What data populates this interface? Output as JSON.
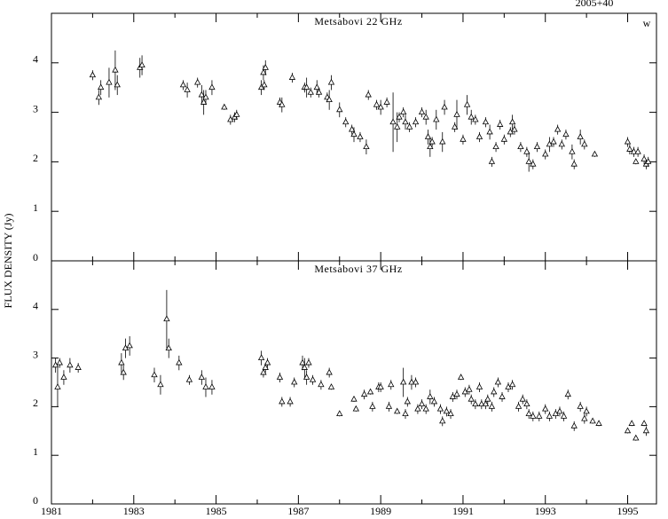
{
  "chart_data": [
    {
      "type": "scatter",
      "title": "Metsabovi 22 GHz",
      "source": "2005+40",
      "corner_label": "w",
      "ylabel": "FLUX DENSITY (Jy)",
      "x": [
        1982.0,
        1982.15,
        1982.2,
        1982.4,
        1982.55,
        1982.6,
        1983.15,
        1983.2,
        1984.2,
        1984.3,
        1984.55,
        1984.65,
        1984.7,
        1984.75,
        1984.9,
        1985.2,
        1985.35,
        1985.45,
        1985.5,
        1986.1,
        1986.15,
        1986.2,
        1986.17,
        1986.55,
        1986.6,
        1986.85,
        1987.15,
        1987.2,
        1987.3,
        1987.45,
        1987.5,
        1987.7,
        1987.75,
        1987.8,
        1988.0,
        1988.15,
        1988.3,
        1988.35,
        1988.5,
        1988.65,
        1988.7,
        1988.9,
        1989.0,
        1989.15,
        1989.3,
        1989.4,
        1989.45,
        1989.55,
        1989.6,
        1989.7,
        1989.85,
        1990.0,
        1990.1,
        1990.15,
        1990.2,
        1990.25,
        1990.35,
        1990.5,
        1990.55,
        1990.8,
        1990.85,
        1991.0,
        1991.1,
        1991.2,
        1991.3,
        1991.4,
        1991.55,
        1991.65,
        1991.7,
        1991.8,
        1991.9,
        1992.0,
        1992.15,
        1992.2,
        1992.25,
        1992.4,
        1992.55,
        1992.6,
        1992.7,
        1992.8,
        1993.0,
        1993.1,
        1993.2,
        1993.3,
        1993.4,
        1993.5,
        1993.65,
        1993.7,
        1993.85,
        1993.95,
        1994.2,
        1995.0,
        1995.05,
        1995.15,
        1995.2,
        1995.25,
        1995.4,
        1995.45,
        1995.5
      ],
      "values": [
        3.75,
        3.3,
        3.5,
        3.6,
        3.85,
        3.55,
        3.9,
        3.95,
        3.55,
        3.45,
        3.6,
        3.35,
        3.2,
        3.3,
        3.5,
        3.1,
        2.85,
        2.9,
        2.95,
        3.5,
        3.8,
        3.9,
        3.55,
        3.2,
        3.15,
        3.7,
        3.5,
        3.5,
        3.4,
        3.5,
        3.4,
        3.3,
        3.25,
        3.6,
        3.05,
        2.8,
        2.65,
        2.55,
        2.5,
        2.3,
        3.35,
        3.15,
        3.1,
        3.2,
        2.8,
        2.7,
        2.9,
        3.0,
        2.8,
        2.7,
        2.8,
        3.0,
        2.9,
        2.5,
        2.3,
        2.4,
        2.85,
        2.4,
        3.1,
        2.7,
        2.95,
        2.45,
        3.15,
        2.9,
        2.85,
        2.5,
        2.8,
        2.6,
        2.0,
        2.3,
        2.75,
        2.45,
        2.6,
        2.8,
        2.65,
        2.3,
        2.2,
        2.0,
        1.95,
        2.3,
        2.15,
        2.35,
        2.4,
        2.65,
        2.35,
        2.55,
        2.2,
        1.95,
        2.5,
        2.35,
        2.15,
        2.4,
        2.25,
        2.2,
        2.0,
        2.2,
        2.05,
        1.95,
        2.0
      ],
      "errors": [
        0.1,
        0.15,
        0.15,
        0.3,
        0.4,
        0.2,
        0.2,
        0.2,
        0.1,
        0.15,
        0.1,
        0.2,
        0.25,
        0.15,
        0.15,
        0.05,
        0.1,
        0.1,
        0.1,
        0.15,
        0.15,
        0.15,
        0.1,
        0.1,
        0.15,
        0.1,
        0.1,
        0.2,
        0.1,
        0.15,
        0.1,
        0.1,
        0.2,
        0.15,
        0.15,
        0.1,
        0.1,
        0.15,
        0.1,
        0.15,
        0.1,
        0.1,
        0.15,
        0.1,
        0.6,
        0.3,
        0.1,
        0.1,
        0.15,
        0.1,
        0.1,
        0.1,
        0.15,
        0.15,
        0.2,
        0.1,
        0.2,
        0.2,
        0.15,
        0.1,
        0.3,
        0.1,
        0.2,
        0.15,
        0.1,
        0.1,
        0.1,
        0.15,
        0.1,
        0.1,
        0.1,
        0.1,
        0.1,
        0.15,
        0.1,
        0.1,
        0.1,
        0.2,
        0.1,
        0.1,
        0.1,
        0.15,
        0.1,
        0.1,
        0.1,
        0.1,
        0.15,
        0.1,
        0.15,
        0.1,
        0.05,
        0.1,
        0.1,
        0.1,
        0.05,
        0.1,
        0.1,
        0.1,
        0.1
      ],
      "xlim": [
        1981,
        1995.7
      ],
      "ylim": [
        0,
        5
      ],
      "yticks": [
        0,
        1,
        2,
        3,
        4
      ],
      "xticks": [
        1981,
        1983,
        1985,
        1987,
        1989,
        1991,
        1993,
        1995
      ],
      "xminor": [
        1982,
        1984,
        1986,
        1988,
        1990,
        1992,
        1994
      ]
    },
    {
      "type": "scatter",
      "title": "Metsabovi 37 GHz",
      "x": [
        1981.1,
        1981.15,
        1981.2,
        1981.3,
        1981.45,
        1981.65,
        1982.7,
        1982.75,
        1982.8,
        1982.9,
        1983.5,
        1983.65,
        1983.8,
        1983.85,
        1984.1,
        1984.35,
        1984.65,
        1984.75,
        1984.9,
        1986.1,
        1986.15,
        1986.2,
        1986.25,
        1986.55,
        1986.6,
        1986.8,
        1986.9,
        1987.1,
        1987.15,
        1987.2,
        1987.25,
        1987.35,
        1987.55,
        1987.75,
        1987.8,
        1988.0,
        1988.35,
        1988.4,
        1988.6,
        1988.75,
        1988.8,
        1988.95,
        1989.0,
        1989.2,
        1989.25,
        1989.4,
        1989.55,
        1989.6,
        1989.65,
        1989.75,
        1989.85,
        1989.9,
        1990.0,
        1990.1,
        1990.2,
        1990.3,
        1990.45,
        1990.5,
        1990.6,
        1990.7,
        1990.75,
        1990.85,
        1990.95,
        1991.05,
        1991.15,
        1991.2,
        1991.3,
        1991.4,
        1991.45,
        1991.55,
        1991.6,
        1991.7,
        1991.75,
        1991.85,
        1991.95,
        1992.1,
        1992.2,
        1992.35,
        1992.45,
        1992.55,
        1992.6,
        1992.7,
        1992.85,
        1993.0,
        1993.1,
        1993.25,
        1993.35,
        1993.45,
        1993.55,
        1993.7,
        1993.85,
        1993.95,
        1994.0,
        1994.15,
        1994.3,
        1995.0,
        1995.1,
        1995.2,
        1995.4,
        1995.45
      ],
      "values": [
        2.85,
        2.4,
        2.9,
        2.6,
        2.85,
        2.8,
        2.9,
        2.7,
        3.2,
        3.25,
        2.65,
        2.45,
        3.8,
        3.2,
        2.9,
        2.55,
        2.6,
        2.4,
        2.4,
        3.0,
        2.7,
        2.8,
        2.9,
        2.6,
        2.1,
        2.1,
        2.5,
        2.9,
        2.8,
        2.6,
        2.9,
        2.55,
        2.45,
        2.7,
        2.4,
        1.85,
        2.15,
        1.95,
        2.25,
        2.3,
        2.0,
        2.4,
        2.4,
        2.0,
        2.45,
        1.9,
        2.5,
        1.85,
        2.1,
        2.5,
        2.5,
        1.95,
        2.05,
        1.95,
        2.2,
        2.1,
        1.95,
        1.7,
        1.9,
        1.85,
        2.2,
        2.25,
        2.6,
        2.3,
        2.35,
        2.15,
        2.05,
        2.4,
        2.05,
        2.05,
        2.15,
        2.0,
        2.3,
        2.5,
        2.2,
        2.4,
        2.45,
        2.0,
        2.15,
        2.05,
        1.85,
        1.8,
        1.8,
        1.95,
        1.8,
        1.85,
        1.9,
        1.8,
        2.25,
        1.6,
        2.0,
        1.75,
        1.9,
        1.7,
        1.65,
        1.5,
        1.65,
        1.35,
        1.65,
        1.5
      ],
      "errors": [
        0.15,
        0.4,
        0.1,
        0.15,
        0.15,
        0.1,
        0.2,
        0.15,
        0.2,
        0.2,
        0.15,
        0.2,
        0.6,
        0.2,
        0.15,
        0.1,
        0.15,
        0.2,
        0.15,
        0.15,
        0.1,
        0.1,
        0.1,
        0.1,
        0.1,
        0.1,
        0.1,
        0.15,
        0.2,
        0.15,
        0.1,
        0.1,
        0.1,
        0.1,
        0.05,
        0.05,
        0.05,
        0.05,
        0.1,
        0.05,
        0.1,
        0.1,
        0.1,
        0.1,
        0.1,
        0.05,
        0.3,
        0.1,
        0.1,
        0.15,
        0.1,
        0.1,
        0.1,
        0.1,
        0.15,
        0.1,
        0.1,
        0.1,
        0.1,
        0.1,
        0.1,
        0.1,
        0.05,
        0.1,
        0.1,
        0.1,
        0.1,
        0.1,
        0.1,
        0.1,
        0.1,
        0.1,
        0.1,
        0.1,
        0.1,
        0.1,
        0.1,
        0.1,
        0.1,
        0.1,
        0.1,
        0.1,
        0.1,
        0.1,
        0.1,
        0.1,
        0.1,
        0.1,
        0.1,
        0.1,
        0.1,
        0.1,
        0.1,
        0.05,
        0.05,
        0.05,
        0.05,
        0.05,
        0.05,
        0.1
      ],
      "xlim": [
        1981,
        1995.7
      ],
      "ylim": [
        0,
        5
      ],
      "yticks": [
        0,
        1,
        2,
        3,
        4
      ],
      "xticks": [
        1981,
        1983,
        1985,
        1987,
        1989,
        1991,
        1993,
        1995
      ],
      "xminor": [
        1982,
        1984,
        1986,
        1988,
        1990,
        1992,
        1994
      ]
    }
  ]
}
